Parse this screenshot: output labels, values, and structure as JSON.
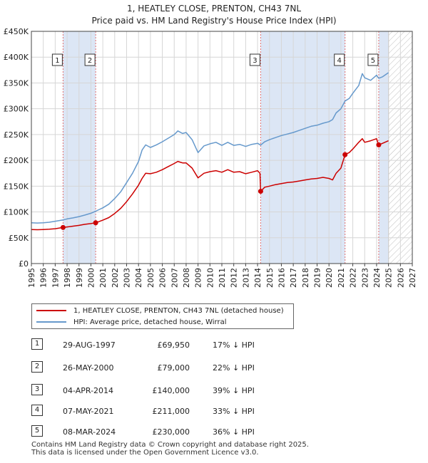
{
  "chart_data": {
    "type": "line",
    "title": "1, HEATLEY CLOSE, PRENTON, CH43 7NL",
    "subtitle": "Price paid vs. HM Land Registry's House Price Index (HPI)",
    "xlim": [
      1995,
      2027
    ],
    "ylim": [
      0,
      450000
    ],
    "x_ticks": [
      "1995",
      "1996",
      "1997",
      "1998",
      "1999",
      "2000",
      "2001",
      "2002",
      "2003",
      "2004",
      "2005",
      "2006",
      "2007",
      "2008",
      "2009",
      "2010",
      "2011",
      "2012",
      "2013",
      "2014",
      "2015",
      "2016",
      "2017",
      "2018",
      "2019",
      "2020",
      "2021",
      "2022",
      "2023",
      "2024",
      "2025",
      "2026",
      "2027"
    ],
    "y_ticks": [
      {
        "value": 0,
        "label": "£0"
      },
      {
        "value": 50000,
        "label": "£50K"
      },
      {
        "value": 100000,
        "label": "£100K"
      },
      {
        "value": 150000,
        "label": "£150K"
      },
      {
        "value": 200000,
        "label": "£200K"
      },
      {
        "value": 250000,
        "label": "£250K"
      },
      {
        "value": 300000,
        "label": "£300K"
      },
      {
        "value": 350000,
        "label": "£350K"
      },
      {
        "value": 400000,
        "label": "£400K"
      },
      {
        "value": 450000,
        "label": "£450K"
      }
    ],
    "future_hatch_from": 2025.0,
    "series": [
      {
        "name": "1, HEATLEY CLOSE, PRENTON, CH43 7NL (detached house)",
        "color": "#cc0000",
        "points": [
          [
            1995.0,
            66000
          ],
          [
            1995.5,
            65500
          ],
          [
            1996.0,
            66000
          ],
          [
            1996.5,
            66500
          ],
          [
            1997.0,
            67500
          ],
          [
            1997.66,
            69950
          ],
          [
            1998.0,
            71000
          ],
          [
            1998.5,
            72500
          ],
          [
            1999.0,
            74000
          ],
          [
            1999.5,
            76000
          ],
          [
            2000.0,
            77500
          ],
          [
            2000.4,
            79000
          ],
          [
            2001.0,
            84000
          ],
          [
            2001.5,
            89000
          ],
          [
            2002.0,
            97000
          ],
          [
            2002.5,
            107000
          ],
          [
            2003.0,
            120000
          ],
          [
            2003.5,
            135000
          ],
          [
            2004.0,
            152000
          ],
          [
            2004.3,
            165000
          ],
          [
            2004.6,
            175000
          ],
          [
            2005.0,
            174000
          ],
          [
            2005.5,
            177000
          ],
          [
            2006.0,
            182000
          ],
          [
            2006.5,
            188000
          ],
          [
            2007.0,
            194000
          ],
          [
            2007.3,
            198000
          ],
          [
            2007.7,
            195000
          ],
          [
            2008.0,
            195000
          ],
          [
            2008.5,
            185000
          ],
          [
            2009.0,
            166000
          ],
          [
            2009.5,
            175000
          ],
          [
            2010.0,
            178000
          ],
          [
            2010.5,
            180000
          ],
          [
            2011.0,
            177000
          ],
          [
            2011.5,
            182000
          ],
          [
            2012.0,
            177000
          ],
          [
            2012.5,
            178000
          ],
          [
            2013.0,
            174000
          ],
          [
            2013.5,
            177000
          ],
          [
            2014.0,
            180000
          ],
          [
            2014.2,
            175000
          ],
          [
            2014.26,
            140000
          ],
          [
            2014.6,
            148000
          ],
          [
            2015.0,
            150000
          ],
          [
            2015.5,
            153000
          ],
          [
            2016.0,
            155000
          ],
          [
            2016.5,
            157000
          ],
          [
            2017.0,
            158000
          ],
          [
            2017.5,
            160000
          ],
          [
            2018.0,
            162000
          ],
          [
            2018.5,
            164000
          ],
          [
            2019.0,
            165000
          ],
          [
            2019.5,
            167000
          ],
          [
            2020.0,
            165000
          ],
          [
            2020.3,
            162000
          ],
          [
            2020.6,
            175000
          ],
          [
            2021.0,
            185000
          ],
          [
            2021.35,
            211000
          ],
          [
            2021.7,
            215000
          ],
          [
            2022.0,
            222000
          ],
          [
            2022.5,
            235000
          ],
          [
            2022.8,
            242000
          ],
          [
            2023.0,
            235000
          ],
          [
            2023.5,
            238000
          ],
          [
            2024.0,
            242000
          ],
          [
            2024.18,
            230000
          ],
          [
            2024.5,
            233000
          ],
          [
            2025.0,
            238000
          ]
        ]
      },
      {
        "name": "HPI: Average price, detached house, Wirral",
        "color": "#6699cc",
        "points": [
          [
            1995.0,
            79000
          ],
          [
            1995.5,
            78500
          ],
          [
            1996.0,
            79000
          ],
          [
            1996.5,
            80000
          ],
          [
            1997.0,
            82000
          ],
          [
            1997.66,
            84500
          ],
          [
            1998.0,
            86500
          ],
          [
            1998.5,
            88500
          ],
          [
            1999.0,
            91000
          ],
          [
            1999.5,
            94000
          ],
          [
            2000.0,
            97500
          ],
          [
            2000.4,
            101500
          ],
          [
            2001.0,
            108000
          ],
          [
            2001.5,
            115000
          ],
          [
            2002.0,
            126000
          ],
          [
            2002.5,
            139000
          ],
          [
            2003.0,
            157000
          ],
          [
            2003.5,
            175000
          ],
          [
            2004.0,
            198000
          ],
          [
            2004.3,
            220000
          ],
          [
            2004.6,
            230000
          ],
          [
            2005.0,
            225000
          ],
          [
            2005.5,
            230000
          ],
          [
            2006.0,
            236000
          ],
          [
            2006.5,
            243000
          ],
          [
            2007.0,
            250000
          ],
          [
            2007.3,
            257000
          ],
          [
            2007.7,
            252000
          ],
          [
            2008.0,
            254000
          ],
          [
            2008.5,
            240000
          ],
          [
            2009.0,
            215000
          ],
          [
            2009.5,
            228000
          ],
          [
            2010.0,
            232000
          ],
          [
            2010.5,
            235000
          ],
          [
            2011.0,
            229000
          ],
          [
            2011.5,
            235000
          ],
          [
            2012.0,
            229000
          ],
          [
            2012.5,
            231000
          ],
          [
            2013.0,
            227000
          ],
          [
            2013.5,
            231000
          ],
          [
            2014.0,
            233000
          ],
          [
            2014.26,
            229500
          ],
          [
            2014.6,
            236000
          ],
          [
            2015.0,
            240000
          ],
          [
            2015.5,
            244000
          ],
          [
            2016.0,
            248000
          ],
          [
            2016.5,
            251000
          ],
          [
            2017.0,
            254000
          ],
          [
            2017.5,
            258000
          ],
          [
            2018.0,
            262000
          ],
          [
            2018.5,
            266000
          ],
          [
            2019.0,
            268000
          ],
          [
            2019.5,
            272000
          ],
          [
            2020.0,
            275000
          ],
          [
            2020.3,
            279000
          ],
          [
            2020.6,
            292000
          ],
          [
            2021.0,
            300000
          ],
          [
            2021.35,
            315000
          ],
          [
            2021.7,
            320000
          ],
          [
            2022.0,
            330000
          ],
          [
            2022.5,
            345000
          ],
          [
            2022.8,
            368000
          ],
          [
            2023.0,
            360000
          ],
          [
            2023.5,
            355000
          ],
          [
            2024.0,
            365000
          ],
          [
            2024.18,
            359000
          ],
          [
            2024.5,
            362000
          ],
          [
            2025.0,
            370000
          ]
        ]
      }
    ],
    "sales": [
      {
        "num": "1",
        "x": 1997.66,
        "value": 69950,
        "date": "29-AUG-1997",
        "price": "£69,950",
        "hpi": "17% ↓ HPI"
      },
      {
        "num": "2",
        "x": 2000.4,
        "value": 79000,
        "date": "26-MAY-2000",
        "price": "£79,000",
        "hpi": "22% ↓ HPI"
      },
      {
        "num": "3",
        "x": 2014.26,
        "value": 140000,
        "date": "04-APR-2014",
        "price": "£140,000",
        "hpi": "39% ↓ HPI"
      },
      {
        "num": "4",
        "x": 2021.35,
        "value": 211000,
        "date": "07-MAY-2021",
        "price": "£211,000",
        "hpi": "33% ↓ HPI"
      },
      {
        "num": "5",
        "x": 2024.18,
        "value": 230000,
        "date": "08-MAR-2024",
        "price": "£230,000",
        "hpi": "36% ↓ HPI"
      }
    ],
    "shaded_spans": [
      [
        1997.66,
        2000.4
      ],
      [
        2014.26,
        2021.35
      ],
      [
        2024.18,
        2025.0
      ]
    ]
  },
  "footer": {
    "line1": "Contains HM Land Registry data © Crown copyright and database right 2025.",
    "line2": "This data is licensed under the Open Government Licence v3.0."
  }
}
